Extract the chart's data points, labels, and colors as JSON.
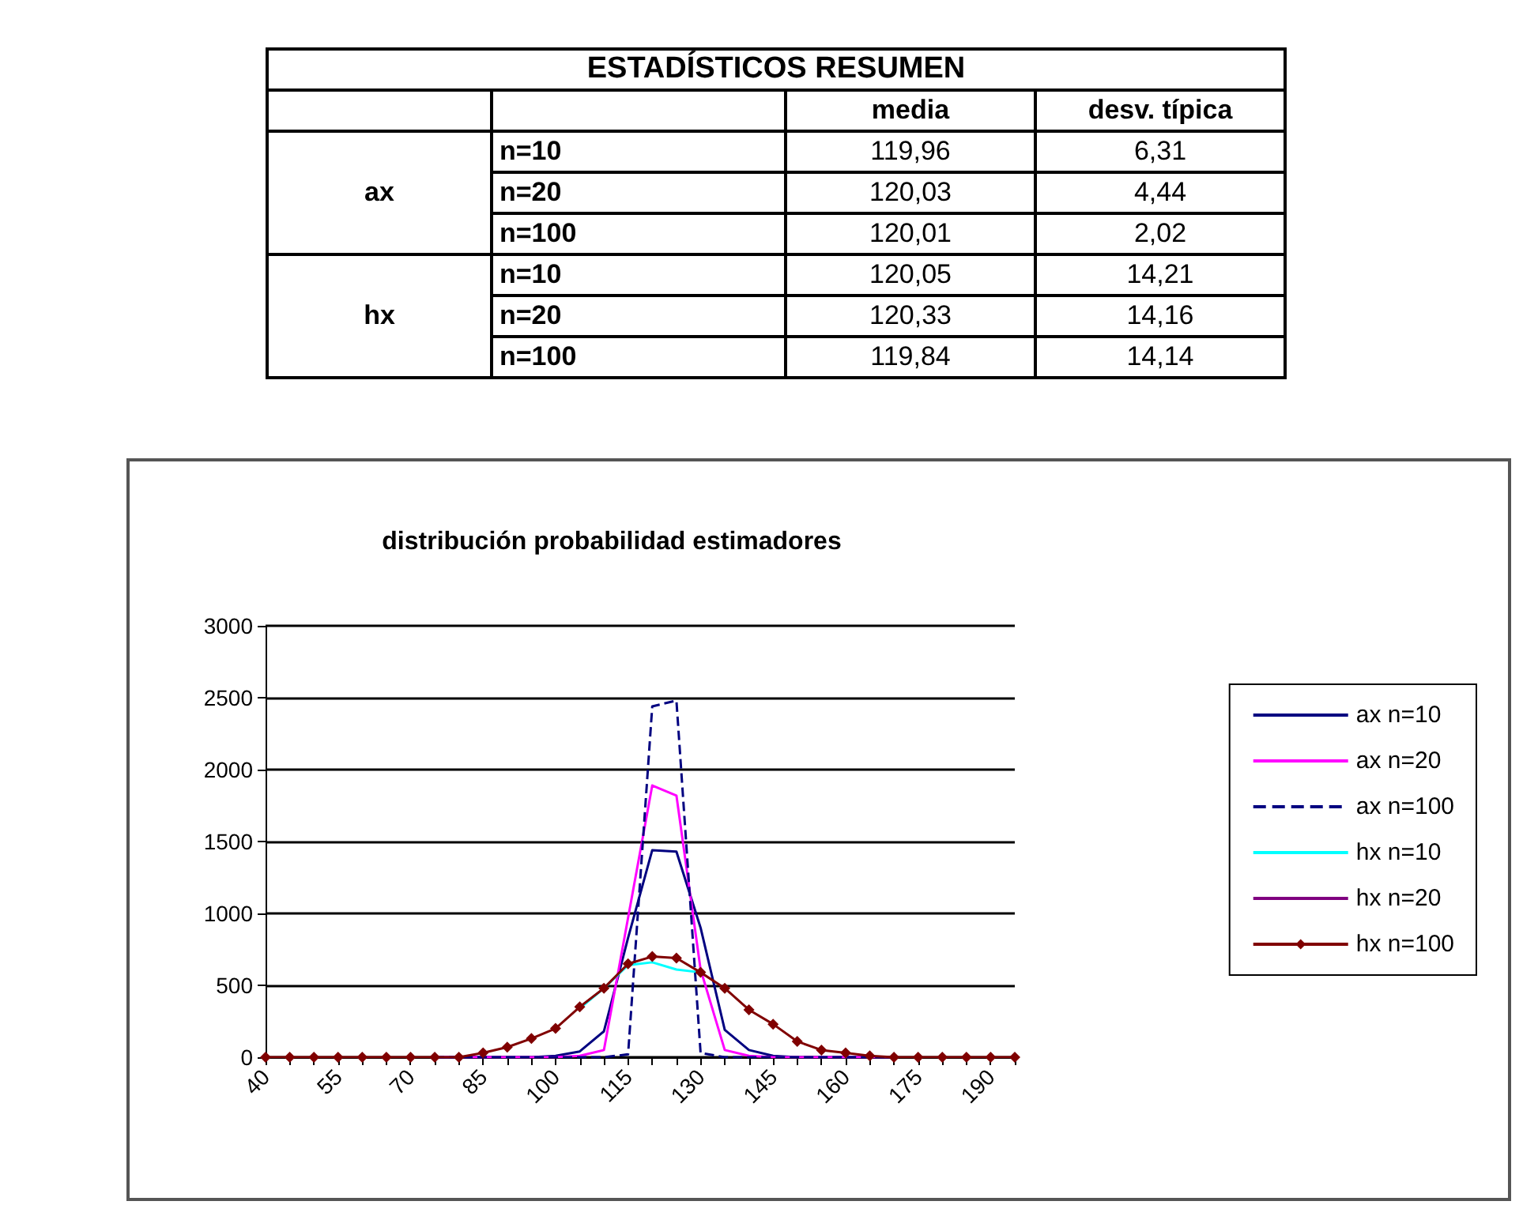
{
  "chart_data": [
    {
      "type": "other",
      "title": "ESTADÍSTICOS RESUMEN",
      "categories": [
        "media",
        "desv. típica"
      ],
      "y_categories": [
        "n=10",
        "n=20",
        "n=100",
        "n=10",
        "n=20",
        "n=100"
      ],
      "y2_categories": [
        "ax",
        null,
        null,
        "hx",
        null,
        null
      ],
      "cell_labels": [
        [
          "119,96",
          "6,31"
        ],
        [
          "120,03",
          "4,44"
        ],
        [
          "120,01",
          "2,02"
        ],
        [
          "120,05",
          "14,21"
        ],
        [
          "120,33",
          "14,16"
        ],
        [
          "119,84",
          "14,14"
        ]
      ]
    },
    {
      "type": "line",
      "title": "distribución probabilidad estimadores",
      "categories": [
        "40",
        null,
        null,
        "55",
        null,
        null,
        "70",
        null,
        null,
        "85",
        null,
        null,
        "100",
        null,
        null,
        "115",
        null,
        null,
        "130",
        null,
        null,
        "145",
        null,
        null,
        "160",
        null,
        null,
        "175",
        null,
        null,
        "190",
        null
      ],
      "series": [
        {
          "name": "ax n=10",
          "color": "#000080",
          "line_style": "solid",
          "marker": "none",
          "values": [
            null,
            null,
            null,
            null,
            null,
            null,
            null,
            0,
            0,
            0,
            0,
            0,
            10,
            40,
            180,
            830,
            1440,
            1430,
            900,
            190,
            50,
            10,
            0,
            0,
            0,
            0,
            0,
            null,
            null,
            null,
            null,
            null
          ]
        },
        {
          "name": "ax n=20",
          "color": "#ff00ff",
          "line_style": "solid",
          "marker": "none",
          "values": [
            null,
            null,
            null,
            null,
            null,
            null,
            null,
            0,
            0,
            0,
            0,
            0,
            0,
            10,
            50,
            970,
            1890,
            1820,
            610,
            50,
            10,
            0,
            0,
            0,
            0,
            0,
            0,
            null,
            null,
            null,
            null,
            null
          ]
        },
        {
          "name": "ax n=100",
          "color": "#000080",
          "line_style": "dashed",
          "marker": "none",
          "values": [
            null,
            null,
            null,
            null,
            null,
            null,
            null,
            0,
            0,
            0,
            0,
            0,
            0,
            0,
            0,
            20,
            2440,
            2480,
            30,
            0,
            0,
            0,
            0,
            0,
            0,
            0,
            0,
            null,
            null,
            null,
            null,
            null
          ]
        },
        {
          "name": "hx n=10",
          "color": "#00ffff",
          "line_style": "solid",
          "marker": "none",
          "values": [
            null,
            null,
            null,
            null,
            null,
            null,
            null,
            null,
            null,
            null,
            null,
            null,
            null,
            340,
            480,
            640,
            660,
            610,
            590,
            null,
            null,
            null,
            null,
            null,
            null,
            null,
            null,
            null,
            null,
            null,
            null,
            null
          ]
        },
        {
          "name": "hx n=20",
          "color": "#800080",
          "line_style": "solid",
          "marker": "none",
          "values": [
            null,
            null,
            null,
            null,
            null,
            null,
            null,
            null,
            null,
            null,
            null,
            null,
            null,
            null,
            null,
            null,
            null,
            null,
            null,
            null,
            null,
            null,
            null,
            null,
            null,
            null,
            null,
            null,
            null,
            null,
            null,
            null
          ]
        },
        {
          "name": "hx n=100",
          "color": "#800000",
          "line_style": "solid",
          "marker": "diamond",
          "values": [
            0,
            0,
            0,
            0,
            0,
            0,
            0,
            0,
            0,
            30,
            70,
            130,
            200,
            350,
            480,
            650,
            700,
            690,
            590,
            480,
            330,
            230,
            110,
            50,
            30,
            10,
            0,
            0,
            0,
            0,
            0,
            0
          ]
        }
      ],
      "ylim": [
        0,
        3000
      ],
      "yticks": [
        0,
        500,
        1000,
        1500,
        2000,
        2500,
        3000
      ],
      "grid": "y",
      "legend": "right"
    }
  ]
}
